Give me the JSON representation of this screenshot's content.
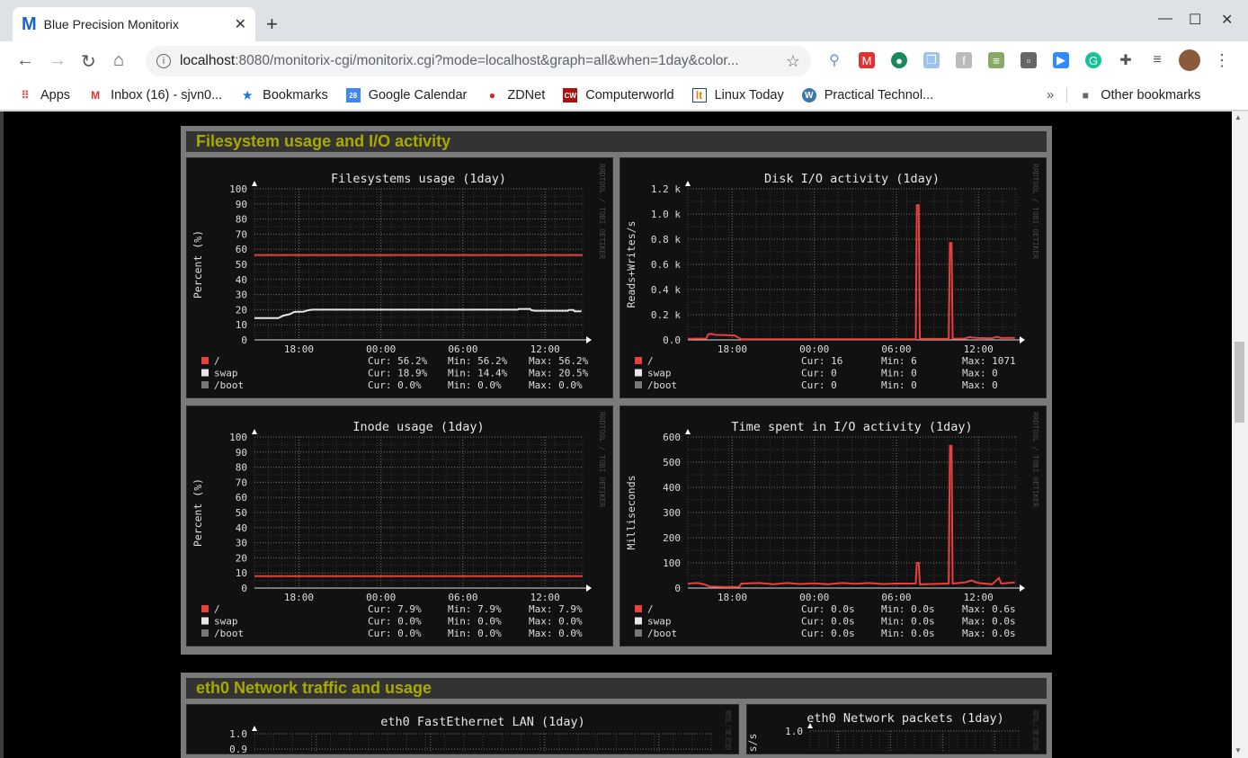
{
  "browser": {
    "tab_title": "Blue Precision Monitorix",
    "tab_favicon": "M",
    "url_host": "localhost",
    "url_rest": ":8080/monitorix-cgi/monitorix.cgi?mode=localhost&graph=all&when=1day&color...",
    "bookmarks": [
      {
        "label": "Apps",
        "icon": "apps-grid-icon"
      },
      {
        "label": "Inbox (16) - sjvn0...",
        "icon": "gmail-icon"
      },
      {
        "label": "Bookmarks",
        "icon": "star-icon"
      },
      {
        "label": "Google Calendar",
        "icon": "calendar-icon"
      },
      {
        "label": "ZDNet",
        "icon": "zdnet-icon"
      },
      {
        "label": "Computerworld",
        "icon": "computerworld-icon"
      },
      {
        "label": "Linux Today",
        "icon": "linux-today-icon"
      },
      {
        "label": "Practical Technol...",
        "icon": "wordpress-icon"
      }
    ],
    "other_bookmarks": "Other bookmarks"
  },
  "sections": [
    {
      "title": "Filesystem usage and I/O activity"
    },
    {
      "title": "eth0 Network traffic and usage"
    }
  ],
  "watermark": "RRDTOOL / TOBI OETIKER",
  "colors": {
    "root": "#e8403c",
    "swap": "#e6e6e6",
    "boot": "#777777",
    "section_title": "#a9a900"
  },
  "chart_data": [
    {
      "type": "line",
      "title": "Filesystems usage  (1day)",
      "ylabel": "Percent (%)",
      "ylim": [
        0,
        100
      ],
      "yticks": [
        "0",
        "10",
        "20",
        "30",
        "40",
        "50",
        "60",
        "70",
        "80",
        "90",
        "100"
      ],
      "xrange": [
        "14:45",
        "14:45"
      ],
      "xticks": [
        "18:00",
        "00:00",
        "06:00",
        "12:00"
      ],
      "grid": true,
      "series": [
        {
          "name": "/",
          "color": "#e8403c",
          "cur": "Cur: 56.2%",
          "min": "Min: 56.2%",
          "max": "Max: 56.2%",
          "points": [
            [
              "14:45",
              56.2
            ],
            [
              "14:45",
              56.2
            ]
          ]
        },
        {
          "name": "swap",
          "color": "#e6e6e6",
          "cur": "Cur: 18.9%",
          "min": "Min: 14.4%",
          "max": "Max: 20.5%",
          "points": [
            [
              "14:45",
              14.4
            ],
            [
              "16:30",
              14.4
            ],
            [
              "16:50",
              16
            ],
            [
              "17:20",
              17
            ],
            [
              "17:40",
              18.5
            ],
            [
              "18:20",
              18.7
            ],
            [
              "18:40",
              19.6
            ],
            [
              "19:00",
              20
            ],
            [
              "10:00",
              20
            ],
            [
              "10:05",
              20.5
            ],
            [
              "10:55",
              20.5
            ],
            [
              "11:00",
              19.6
            ],
            [
              "11:15",
              19.3
            ],
            [
              "13:40",
              19.3
            ],
            [
              "13:45",
              19.8
            ],
            [
              "14:05",
              19.8
            ],
            [
              "14:10",
              18.9
            ],
            [
              "14:40",
              18.9
            ]
          ]
        },
        {
          "name": "/boot",
          "color": "#777777",
          "cur": "Cur:  0.0%",
          "min": "Min:  0.0%",
          "max": "Max:  0.0%",
          "points": []
        }
      ]
    },
    {
      "type": "line",
      "title": "Disk I/O activity  (1day)",
      "ylabel": "Reads+Writes/s",
      "ylim": [
        0,
        1200
      ],
      "yticks": [
        "0.0",
        "0.2 k",
        "0.4 k",
        "0.6 k",
        "0.8 k",
        "1.0 k",
        "1.2 k"
      ],
      "xrange": [
        "14:45",
        "14:45"
      ],
      "xticks": [
        "18:00",
        "00:00",
        "06:00",
        "12:00"
      ],
      "grid": true,
      "series": [
        {
          "name": "/",
          "color": "#e8403c",
          "cur": "Cur:    16",
          "min": "Min:     6",
          "max": "Max:  1071",
          "points": [
            [
              "14:45",
              10
            ],
            [
              "15:00",
              8
            ],
            [
              "15:10",
              10
            ],
            [
              "16:05",
              10
            ],
            [
              "16:15",
              45
            ],
            [
              "16:30",
              48
            ],
            [
              "16:45",
              40
            ],
            [
              "17:40",
              38
            ],
            [
              "18:10",
              35
            ],
            [
              "18:30",
              15
            ],
            [
              "18:40",
              6
            ],
            [
              "07:25",
              6
            ],
            [
              "07:30",
              1071
            ],
            [
              "07:38",
              1071
            ],
            [
              "07:43",
              8
            ],
            [
              "09:50",
              8
            ],
            [
              "09:55",
              770
            ],
            [
              "10:02",
              770
            ],
            [
              "10:07",
              10
            ],
            [
              "11:00",
              10
            ],
            [
              "11:20",
              22
            ],
            [
              "11:40",
              18
            ],
            [
              "12:00",
              15
            ],
            [
              "13:00",
              12
            ],
            [
              "13:20",
              25
            ],
            [
              "13:40",
              15
            ],
            [
              "14:40",
              16
            ]
          ]
        },
        {
          "name": "swap",
          "color": "#e6e6e6",
          "cur": "Cur:     0",
          "min": "Min:     0",
          "max": "Max:     0",
          "points": []
        },
        {
          "name": "/boot",
          "color": "#777777",
          "cur": "Cur:     0",
          "min": "Min:     0",
          "max": "Max:     0",
          "points": []
        }
      ]
    },
    {
      "type": "line",
      "title": "Inode usage  (1day)",
      "ylabel": "Percent (%)",
      "ylim": [
        0,
        100
      ],
      "yticks": [
        "0",
        "10",
        "20",
        "30",
        "40",
        "50",
        "60",
        "70",
        "80",
        "90",
        "100"
      ],
      "xrange": [
        "14:45",
        "14:45"
      ],
      "xticks": [
        "18:00",
        "00:00",
        "06:00",
        "12:00"
      ],
      "grid": true,
      "series": [
        {
          "name": "/",
          "color": "#e8403c",
          "cur": "Cur:  7.9%",
          "min": "Min:  7.9%",
          "max": "Max:  7.9%",
          "points": [
            [
              "14:45",
              7.9
            ],
            [
              "14:45",
              7.9
            ]
          ]
        },
        {
          "name": "swap",
          "color": "#e6e6e6",
          "cur": "Cur:  0.0%",
          "min": "Min:  0.0%",
          "max": "Max:  0.0%",
          "points": []
        },
        {
          "name": "/boot",
          "color": "#777777",
          "cur": "Cur:  0.0%",
          "min": "Min:  0.0%",
          "max": "Max:  0.0%",
          "points": []
        }
      ]
    },
    {
      "type": "line",
      "title": "Time spent in I/O activity  (1day)",
      "ylabel": "Milliseconds",
      "ylim": [
        0,
        600
      ],
      "yticks": [
        "0",
        "100",
        "200",
        "300",
        "400",
        "500",
        "600"
      ],
      "xrange": [
        "14:45",
        "14:45"
      ],
      "xticks": [
        "18:00",
        "00:00",
        "06:00",
        "12:00"
      ],
      "grid": true,
      "series": [
        {
          "name": "/",
          "color": "#e8403c",
          "cur": "Cur:  0.0s",
          "min": "Min:  0.0s",
          "max": "Max:  0.6s",
          "points": [
            [
              "14:45",
              18
            ],
            [
              "15:30",
              20
            ],
            [
              "16:00",
              14
            ],
            [
              "16:20",
              6
            ],
            [
              "17:00",
              5
            ],
            [
              "17:40",
              4
            ],
            [
              "18:30",
              5
            ],
            [
              "18:40",
              18
            ],
            [
              "20:00",
              20
            ],
            [
              "21:00",
              15
            ],
            [
              "22:00",
              20
            ],
            [
              "23:00",
              16
            ],
            [
              "00:00",
              19
            ],
            [
              "01:00",
              15
            ],
            [
              "02:00",
              20
            ],
            [
              "03:00",
              17
            ],
            [
              "04:00",
              20
            ],
            [
              "05:00",
              16
            ],
            [
              "06:00",
              18
            ],
            [
              "07:25",
              18
            ],
            [
              "07:30",
              100
            ],
            [
              "07:38",
              100
            ],
            [
              "07:43",
              15
            ],
            [
              "09:50",
              18
            ],
            [
              "09:55",
              565
            ],
            [
              "10:02",
              565
            ],
            [
              "10:07",
              18
            ],
            [
              "11:00",
              22
            ],
            [
              "11:30",
              30
            ],
            [
              "12:00",
              20
            ],
            [
              "13:00",
              15
            ],
            [
              "13:30",
              40
            ],
            [
              "13:40",
              18
            ],
            [
              "14:40",
              22
            ]
          ]
        },
        {
          "name": "swap",
          "color": "#e6e6e6",
          "cur": "Cur:  0.0s",
          "min": "Min:  0.0s",
          "max": "Max:  0.0s",
          "points": []
        },
        {
          "name": "/boot",
          "color": "#777777",
          "cur": "Cur:  0.0s",
          "min": "Min:  0.0s",
          "max": "Max:  0.0s",
          "points": []
        }
      ]
    },
    {
      "type": "line",
      "title": "eth0 FastEthernet LAN  (1day)",
      "ylabel": "",
      "ylim": [
        0,
        1.0
      ],
      "yticks": [
        "1.0",
        "0.9"
      ],
      "xrange": [
        "14:45",
        "14:45"
      ],
      "xticks": [],
      "grid": true,
      "series": []
    },
    {
      "type": "line",
      "title": "eth0 Network packets  (1day)",
      "ylabel": "s/s",
      "ylim": [
        0,
        1.0
      ],
      "yticks": [
        "1.0"
      ],
      "xrange": [
        "14:45",
        "14:45"
      ],
      "xticks": [],
      "grid": true,
      "series": []
    }
  ]
}
